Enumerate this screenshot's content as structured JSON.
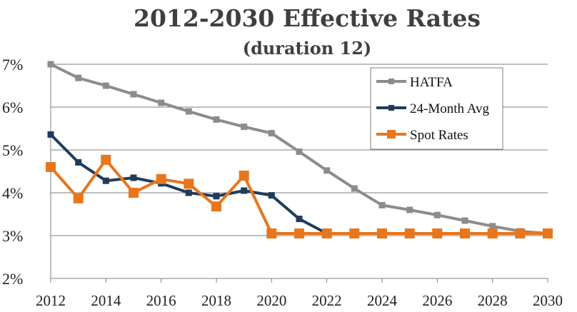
{
  "chart_data": {
    "type": "line",
    "title": "2012-2030 Effective Rates",
    "subtitle": "(duration 12)",
    "xlabel": "",
    "ylabel": "",
    "x": [
      2012,
      2013,
      2014,
      2015,
      2016,
      2017,
      2018,
      2019,
      2020,
      2021,
      2022,
      2023,
      2024,
      2025,
      2026,
      2027,
      2028,
      2029,
      2030
    ],
    "xlim": [
      2012,
      2030
    ],
    "ylim": [
      2,
      7
    ],
    "x_ticks": [
      "2012",
      "2014",
      "2016",
      "2018",
      "2020",
      "2022",
      "2024",
      "2026",
      "2028",
      "2030"
    ],
    "y_ticks": [
      "2%",
      "3%",
      "4%",
      "5%",
      "6%",
      "7%"
    ],
    "grid": "horizontal",
    "legend_position": "top-right",
    "series": [
      {
        "name": "HATFA",
        "color": "#8c8c8c",
        "marker": "square-small",
        "values": [
          7.0,
          6.68,
          6.5,
          6.3,
          6.1,
          5.9,
          5.71,
          5.54,
          5.39,
          4.96,
          4.52,
          4.1,
          3.71,
          3.6,
          3.48,
          3.35,
          3.22,
          3.1,
          3.05
        ]
      },
      {
        "name": "24-Month Avg",
        "color": "#1f3c5c",
        "marker": "square-small",
        "values": [
          5.36,
          4.71,
          4.28,
          4.35,
          4.22,
          4.0,
          3.92,
          4.05,
          3.94,
          3.39,
          3.05,
          3.05,
          3.05,
          3.05,
          3.05,
          3.05,
          3.05,
          3.05,
          3.05
        ]
      },
      {
        "name": "Spot Rates",
        "color": "#e8761c",
        "marker": "square-large",
        "values": [
          4.6,
          3.87,
          4.77,
          4.0,
          4.32,
          4.21,
          3.68,
          4.4,
          3.05,
          3.05,
          3.05,
          3.05,
          3.05,
          3.05,
          3.05,
          3.05,
          3.05,
          3.05,
          3.05
        ]
      }
    ]
  }
}
